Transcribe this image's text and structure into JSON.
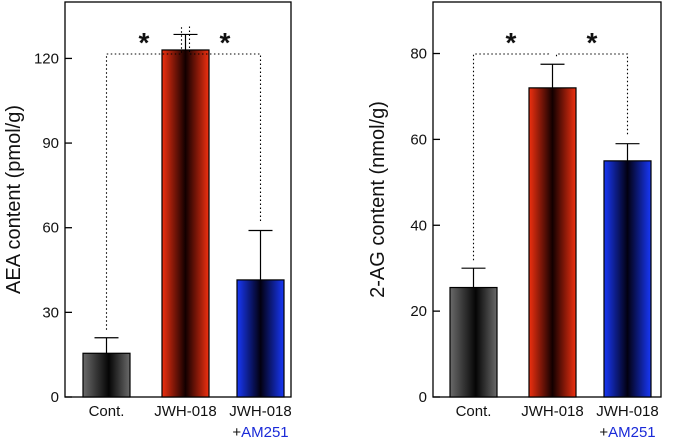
{
  "chart_data": [
    {
      "type": "bar",
      "ylabel": "AEA content (pmol/g)",
      "ylim": [
        0,
        140
      ],
      "yticks": [
        0,
        30,
        60,
        90,
        120
      ],
      "categories": [
        {
          "line1": "Cont.",
          "line2": "",
          "line2_prefix": ""
        },
        {
          "line1": "JWH-018",
          "line2": "",
          "line2_prefix": ""
        },
        {
          "line1": "JWH-018",
          "line2": "AM251",
          "line2_prefix": "+"
        }
      ],
      "values": [
        15.5,
        123,
        41.5
      ],
      "errors": [
        5.5,
        5.5,
        17.5
      ],
      "colors": [
        "#555555",
        "#e02a10",
        "#1230e0"
      ],
      "significance": [
        {
          "from": 0,
          "to": 1,
          "label": "*"
        },
        {
          "from": 1,
          "to": 2,
          "label": "*"
        }
      ]
    },
    {
      "type": "bar",
      "ylabel": "2-AG content (nmol/g)",
      "ylim": [
        0,
        92
      ],
      "yticks": [
        0,
        20,
        40,
        60,
        80
      ],
      "categories": [
        {
          "line1": "Cont.",
          "line2": "",
          "line2_prefix": ""
        },
        {
          "line1": "JWH-018",
          "line2": "",
          "line2_prefix": ""
        },
        {
          "line1": "JWH-018",
          "line2": "AM251",
          "line2_prefix": "+"
        }
      ],
      "values": [
        25.5,
        72,
        55
      ],
      "errors": [
        4.5,
        5.5,
        4
      ],
      "colors": [
        "#555555",
        "#e02a10",
        "#1230e0"
      ],
      "significance": [
        {
          "from": 0,
          "to": 1,
          "label": "*"
        },
        {
          "from": 1,
          "to": 2,
          "label": "*"
        }
      ]
    }
  ],
  "accent": {
    "am251_label_color": "#1a2ad8"
  }
}
